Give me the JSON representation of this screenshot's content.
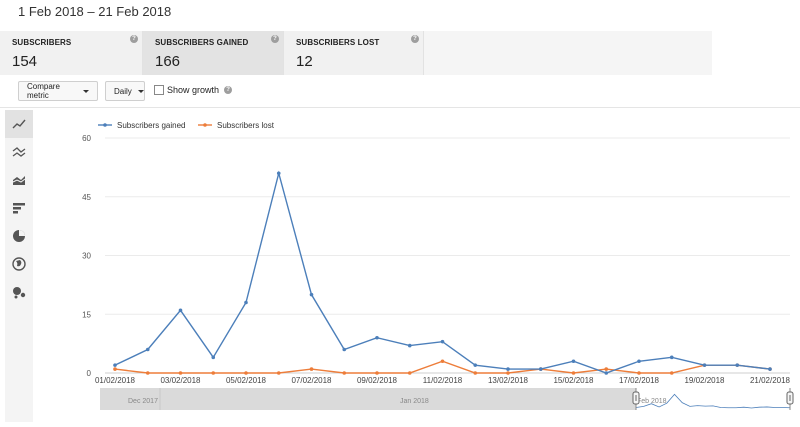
{
  "date_range": "1 Feb 2018 – 21 Feb 2018",
  "metrics": [
    {
      "label": "SUBSCRIBERS",
      "value": "154"
    },
    {
      "label": "SUBSCRIBERS GAINED",
      "value": "166"
    },
    {
      "label": "SUBSCRIBERS LOST",
      "value": "12"
    }
  ],
  "help_glyph": "?",
  "toolbar": {
    "compare_label": "Compare metric",
    "interval_label": "Daily",
    "show_growth_label": "Show growth"
  },
  "sidebar_icons": [
    "line-chart-icon",
    "multi-line-icon",
    "stacked-area-icon",
    "bar-chart-icon",
    "pie-chart-icon",
    "globe-map-icon",
    "bubble-chart-icon"
  ],
  "colors": {
    "gained": "#4c7fba",
    "lost": "#ed7d3a"
  },
  "chart_data": {
    "type": "line",
    "x": [
      "01/02/2018",
      "02/02/2018",
      "03/02/2018",
      "04/02/2018",
      "05/02/2018",
      "06/02/2018",
      "07/02/2018",
      "08/02/2018",
      "09/02/2018",
      "10/02/2018",
      "11/02/2018",
      "12/02/2018",
      "13/02/2018",
      "14/02/2018",
      "15/02/2018",
      "16/02/2018",
      "17/02/2018",
      "18/02/2018",
      "19/02/2018",
      "20/02/2018",
      "21/02/2018"
    ],
    "xtick_labels": [
      "01/02/2018",
      "03/02/2018",
      "05/02/2018",
      "07/02/2018",
      "09/02/2018",
      "11/02/2018",
      "13/02/2018",
      "15/02/2018",
      "17/02/2018",
      "19/02/2018",
      "21/02/2018"
    ],
    "series": [
      {
        "name": "Subscribers gained",
        "values": [
          2,
          6,
          16,
          4,
          18,
          51,
          20,
          6,
          9,
          7,
          8,
          2,
          1,
          1,
          3,
          0,
          3,
          4,
          2,
          2,
          1
        ]
      },
      {
        "name": "Subscribers lost",
        "values": [
          1,
          0,
          0,
          0,
          0,
          0,
          1,
          0,
          0,
          0,
          3,
          0,
          0,
          1,
          0,
          1,
          0,
          0,
          2,
          2,
          1
        ]
      }
    ],
    "yticks": [
      "60",
      "45",
      "30",
      "15",
      "0"
    ],
    "ylim": [
      0,
      60
    ],
    "grid": true,
    "legend": "top-left"
  },
  "navigator": {
    "labels": [
      "Dec 2017",
      "Jan 2018",
      "Feb 2018"
    ]
  }
}
